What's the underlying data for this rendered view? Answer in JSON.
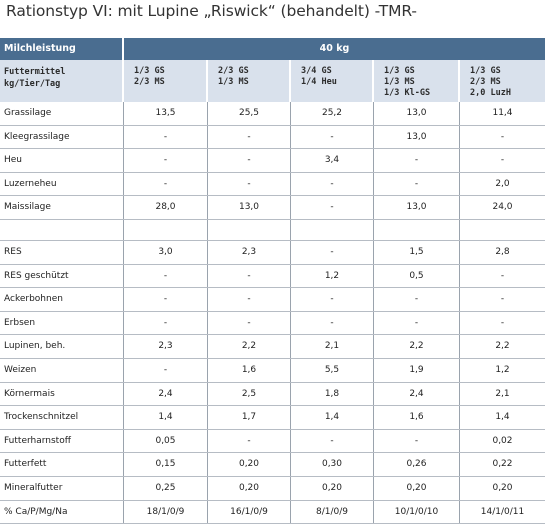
{
  "title": "Rationstyp VI: mit Lupine „Riswick“ (behandelt) -TMR-",
  "header": {
    "row1_label": "Milchleistung",
    "row1_value": "40 kg",
    "row2_label_line1": "Futtermittel",
    "row2_label_line2": "kg/Tier/Tag",
    "columns": [
      [
        "1/3 GS",
        "2/3 MS",
        ""
      ],
      [
        "2/3 GS",
        "1/3 MS",
        ""
      ],
      [
        "3/4 GS",
        "1/4 Heu",
        ""
      ],
      [
        "1/3 GS",
        "1/3 MS",
        "1/3 Kl-GS"
      ],
      [
        "1/3 GS",
        "2/3 MS",
        "2,0 LuzH"
      ]
    ]
  },
  "group1": [
    {
      "label": "Grassilage",
      "values": [
        "13,5",
        "25,5",
        "25,2",
        "13,0",
        "11,4"
      ]
    },
    {
      "label": "Kleegrassilage",
      "values": [
        "-",
        "-",
        "-",
        "13,0",
        "-"
      ]
    },
    {
      "label": "Heu",
      "values": [
        "-",
        "-",
        "3,4",
        "-",
        "-"
      ]
    },
    {
      "label": "Luzerneheu",
      "values": [
        "-",
        "-",
        "-",
        "-",
        "2,0"
      ]
    },
    {
      "label": "Maissilage",
      "values": [
        "28,0",
        "13,0",
        "-",
        "13,0",
        "24,0"
      ]
    }
  ],
  "group2": [
    {
      "label": "RES",
      "values": [
        "3,0",
        "2,3",
        "-",
        "1,5",
        "2,8"
      ]
    },
    {
      "label": "RES geschützt",
      "values": [
        "-",
        "-",
        "1,2",
        "0,5",
        "-"
      ]
    },
    {
      "label": "Ackerbohnen",
      "values": [
        "-",
        "-",
        "-",
        "-",
        "-"
      ]
    },
    {
      "label": "Erbsen",
      "values": [
        "-",
        "-",
        "-",
        "-",
        "-"
      ]
    },
    {
      "label": "Lupinen, beh.",
      "values": [
        "2,3",
        "2,2",
        "2,1",
        "2,2",
        "2,2"
      ]
    },
    {
      "label": "Weizen",
      "values": [
        "-",
        "1,6",
        "5,5",
        "1,9",
        "1,2"
      ]
    },
    {
      "label": "Körnermais",
      "values": [
        "2,4",
        "2,5",
        "1,8",
        "2,4",
        "2,1"
      ]
    },
    {
      "label": "Trockenschnitzel",
      "values": [
        "1,4",
        "1,7",
        "1,4",
        "1,6",
        "1,4"
      ]
    },
    {
      "label": "Futterharnstoff",
      "values": [
        "0,05",
        "-",
        "-",
        "-",
        "0,02"
      ]
    },
    {
      "label": "Futterfett",
      "values": [
        "0,15",
        "0,20",
        "0,30",
        "0,26",
        "0,22"
      ]
    },
    {
      "label": "Mineralfutter",
      "values": [
        "0,25",
        "0,20",
        "0,20",
        "0,20",
        "0,20"
      ]
    },
    {
      "label": "% Ca/P/Mg/Na",
      "values": [
        "18/1/0/9",
        "16/1/0/9",
        "8/1/0/9",
        "10/1/0/10",
        "14/1/0/11"
      ]
    }
  ]
}
